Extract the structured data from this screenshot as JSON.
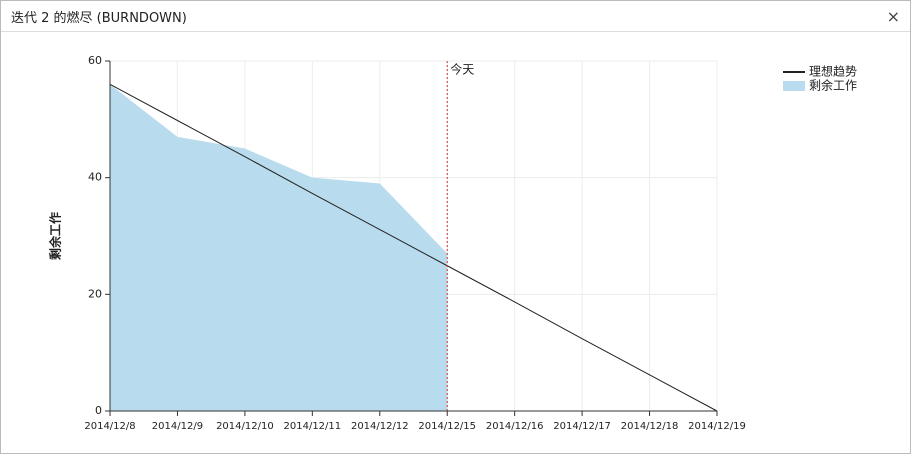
{
  "window": {
    "title": "迭代 2 的燃尽 (BURNDOWN)",
    "close": "×"
  },
  "chart_data": {
    "type": "line",
    "y_label": "剩余工作",
    "categories": [
      "2014/12/8",
      "2014/12/9",
      "2014/12/10",
      "2014/12/11",
      "2014/12/12",
      "2014/12/15",
      "2014/12/16",
      "2014/12/17",
      "2014/12/18",
      "2014/12/19"
    ],
    "series": [
      {
        "name": "理想趋势",
        "color": "#222222",
        "style": "line",
        "values": [
          56,
          49.8,
          43.6,
          37.3,
          31.1,
          24.9,
          18.7,
          12.4,
          6.2,
          0
        ]
      },
      {
        "name": "剩余工作",
        "color": "#b8dcee",
        "style": "area",
        "values": [
          56,
          47,
          45,
          40,
          39,
          27,
          null,
          null,
          null,
          null
        ]
      }
    ],
    "ylim": [
      0,
      60
    ],
    "yticks": [
      0,
      20,
      40,
      60
    ],
    "grid": true,
    "annotation": {
      "text": "今天",
      "x": "2014/12/15",
      "color": "#cc3333"
    },
    "legend": "top-right"
  }
}
